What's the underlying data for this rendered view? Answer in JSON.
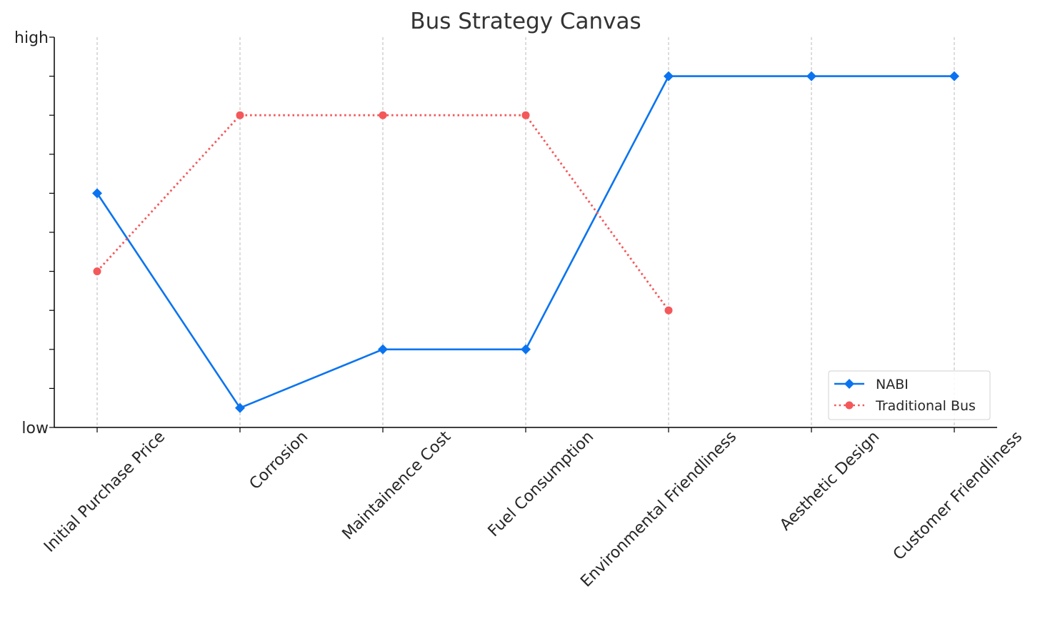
{
  "chart_data": {
    "type": "line",
    "title": "Bus Strategy Canvas",
    "xlabel": "",
    "ylabel": "",
    "categories": [
      "Initial Purchase Price",
      "Corrosion",
      "Maintainence Cost",
      "Fuel Consumption",
      "Environmental Friendliness",
      "Aesthetic Design",
      "Customer Friendliness"
    ],
    "y_tick_labels": {
      "low": "low",
      "high": "high"
    },
    "ylim": [
      0,
      10
    ],
    "grid": "vertical dashed",
    "legend_position": "lower right",
    "series": [
      {
        "name": "NABI",
        "values": [
          6,
          0.5,
          2,
          2,
          9,
          9,
          9
        ],
        "color": "#0a74f0",
        "marker": "diamond",
        "linestyle": "solid"
      },
      {
        "name": "Traditional Bus",
        "values": [
          4,
          8,
          8,
          8,
          3,
          null,
          null
        ],
        "color": "#f4585a",
        "marker": "circle",
        "linestyle": "dotted"
      }
    ]
  }
}
